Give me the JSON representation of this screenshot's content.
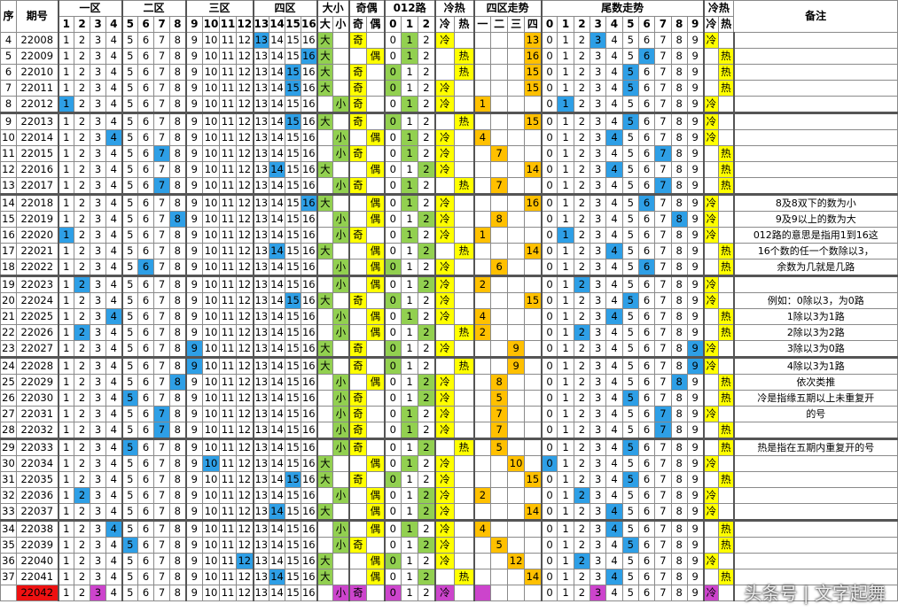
{
  "header": {
    "groups": [
      "序",
      "期号",
      "一区",
      "二区",
      "三区",
      "四区",
      "大小",
      "奇偶",
      "012路",
      "冷热",
      "四区走势",
      "尾数走势",
      "冷热",
      "备注"
    ],
    "zone_numbers": [
      1,
      2,
      3,
      4,
      5,
      6,
      7,
      8,
      9,
      10,
      11,
      12,
      13,
      14,
      15,
      16
    ],
    "size_labels": [
      "大",
      "小"
    ],
    "parity_labels": [
      "奇",
      "偶"
    ],
    "road_labels": [
      0,
      1,
      2
    ],
    "heat_labels": [
      "冷",
      "热"
    ],
    "trend_labels": [
      "一",
      "二",
      "三",
      "四"
    ],
    "tail_labels": [
      0,
      1,
      2,
      3,
      4,
      5,
      6,
      7,
      8,
      9
    ],
    "tail_heat_labels": [
      "冷",
      "热"
    ]
  },
  "rows": [
    {
      "seq": 4,
      "period": "22008",
      "pick": 13,
      "size": "大",
      "parity": "奇",
      "road": 1,
      "heat": "冷",
      "tail": 3,
      "tail_heat": "冷"
    },
    {
      "seq": 5,
      "period": "22009",
      "pick": 16,
      "size": "大",
      "parity": "偶",
      "road": 1,
      "heat": "热",
      "tail": 6,
      "tail_heat": "热"
    },
    {
      "seq": 6,
      "period": "22010",
      "pick": 15,
      "size": "大",
      "parity": "奇",
      "road": 0,
      "heat": "热",
      "tail": 5,
      "tail_heat": "热"
    },
    {
      "seq": 7,
      "period": "22011",
      "pick": 15,
      "size": "大",
      "parity": "奇",
      "road": 0,
      "heat": "冷",
      "tail": 5,
      "tail_heat": "热"
    },
    {
      "seq": 8,
      "period": "22012",
      "pick": 1,
      "size": "小",
      "parity": "奇",
      "road": 1,
      "heat": "冷",
      "tail": 1,
      "tail_heat": "冷"
    },
    {
      "seq": 9,
      "period": "22013",
      "pick": 15,
      "size": "大",
      "parity": "奇",
      "road": 0,
      "heat": "热",
      "tail": 5,
      "tail_heat": "冷"
    },
    {
      "seq": 10,
      "period": "22014",
      "pick": 4,
      "size": "小",
      "parity": "偶",
      "road": 1,
      "heat": "冷",
      "tail": 4,
      "tail_heat": "冷"
    },
    {
      "seq": 11,
      "period": "22015",
      "pick": 7,
      "size": "小",
      "parity": "奇",
      "road": 1,
      "heat": "冷",
      "tail": 7,
      "tail_heat": "热"
    },
    {
      "seq": 12,
      "period": "22016",
      "pick": 14,
      "size": "大",
      "parity": "偶",
      "road": 2,
      "heat": "冷",
      "tail": 4,
      "tail_heat": "热"
    },
    {
      "seq": 13,
      "period": "22017",
      "pick": 7,
      "size": "小",
      "parity": "奇",
      "road": 1,
      "heat": "热",
      "tail": 7,
      "tail_heat": "热"
    },
    {
      "seq": 14,
      "period": "22018",
      "pick": 16,
      "size": "大",
      "parity": "偶",
      "road": 1,
      "heat": "冷",
      "tail": 6,
      "tail_heat": "冷",
      "note": "8及8双下的数为小"
    },
    {
      "seq": 15,
      "period": "22019",
      "pick": 8,
      "size": "小",
      "parity": "偶",
      "road": 2,
      "heat": "冷",
      "tail": 8,
      "tail_heat": "冷",
      "note": "9及9以上的数为大"
    },
    {
      "seq": 16,
      "period": "22020",
      "pick": 1,
      "size": "小",
      "parity": "奇",
      "road": 1,
      "heat": "冷",
      "tail": 1,
      "tail_heat": "冷",
      "note": "012路的意思是指用1到16这"
    },
    {
      "seq": 17,
      "period": "22021",
      "pick": 14,
      "size": "大",
      "parity": "偶",
      "road": 2,
      "heat": "热",
      "tail": 4,
      "tail_heat": "热",
      "note": "16个数的任一个数除以3，"
    },
    {
      "seq": 18,
      "period": "22022",
      "pick": 6,
      "size": "小",
      "parity": "偶",
      "road": 0,
      "heat": "冷",
      "tail": 6,
      "tail_heat": "热",
      "note": "余数为几就是几路"
    },
    {
      "seq": 19,
      "period": "22023",
      "pick": 2,
      "size": "小",
      "parity": "偶",
      "road": 2,
      "heat": "冷",
      "tail": 2,
      "tail_heat": "冷"
    },
    {
      "seq": 20,
      "period": "22024",
      "pick": 15,
      "size": "大",
      "parity": "奇",
      "road": 0,
      "heat": "冷",
      "tail": 5,
      "tail_heat": "冷",
      "note": "例如：0除以3，为0路"
    },
    {
      "seq": 21,
      "period": "22025",
      "pick": 4,
      "size": "小",
      "parity": "偶",
      "road": 1,
      "heat": "冷",
      "tail": 4,
      "tail_heat": "热",
      "note": "1除以3为1路"
    },
    {
      "seq": 22,
      "period": "22026",
      "pick": 2,
      "size": "小",
      "parity": "偶",
      "road": 2,
      "heat": "热",
      "tail": 2,
      "tail_heat": "热",
      "note": "2除以3为2路"
    },
    {
      "seq": 23,
      "period": "22027",
      "pick": 9,
      "size": "大",
      "parity": "奇",
      "road": 0,
      "heat": "冷",
      "tail": 9,
      "tail_heat": "冷",
      "note": "3除以3为0路"
    },
    {
      "seq": 24,
      "period": "22028",
      "pick": 9,
      "size": "大",
      "parity": "奇",
      "road": 0,
      "heat": "热",
      "tail": 9,
      "tail_heat": "冷",
      "note": "4除以3为1路"
    },
    {
      "seq": 25,
      "period": "22029",
      "pick": 8,
      "size": "小",
      "parity": "偶",
      "road": 2,
      "heat": "冷",
      "tail": 8,
      "tail_heat": "热",
      "note": "依次类推"
    },
    {
      "seq": 26,
      "period": "22030",
      "pick": 5,
      "size": "小",
      "parity": "奇",
      "road": 2,
      "heat": "冷",
      "tail": 5,
      "tail_heat": "热",
      "note": "冷是指缘五期以上未重复开"
    },
    {
      "seq": 27,
      "period": "22031",
      "pick": 7,
      "size": "小",
      "parity": "奇",
      "road": 1,
      "heat": "冷",
      "tail": 7,
      "tail_heat": "冷",
      "note": "的号"
    },
    {
      "seq": 28,
      "period": "22032",
      "pick": 7,
      "size": "小",
      "parity": "奇",
      "road": 1,
      "heat": "冷",
      "tail": 7,
      "tail_heat": "热"
    },
    {
      "seq": 29,
      "period": "22033",
      "pick": 5,
      "size": "小",
      "parity": "奇",
      "road": 2,
      "heat": "热",
      "tail": 5,
      "tail_heat": "热",
      "note": "热是指在五期内重复开的号"
    },
    {
      "seq": 30,
      "period": "22034",
      "pick": 10,
      "size": "大",
      "parity": "偶",
      "road": 1,
      "heat": "冷",
      "tail": 0,
      "tail_heat": "冷"
    },
    {
      "seq": 31,
      "period": "22035",
      "pick": 15,
      "size": "大",
      "parity": "奇",
      "road": 0,
      "heat": "冷",
      "tail": 5,
      "tail_heat": "热"
    },
    {
      "seq": 32,
      "period": "22036",
      "pick": 2,
      "size": "小",
      "parity": "偶",
      "road": 2,
      "heat": "冷",
      "tail": 2,
      "tail_heat": "冷"
    },
    {
      "seq": 33,
      "period": "22037",
      "pick": 14,
      "size": "大",
      "parity": "偶",
      "road": 2,
      "heat": "冷",
      "tail": 4,
      "tail_heat": "冷"
    },
    {
      "seq": 34,
      "period": "22038",
      "pick": 4,
      "size": "小",
      "parity": "偶",
      "road": 1,
      "heat": "冷",
      "tail": 4,
      "tail_heat": "热"
    },
    {
      "seq": 35,
      "period": "22039",
      "pick": 5,
      "size": "小",
      "parity": "奇",
      "road": 2,
      "heat": "冷",
      "tail": 5,
      "tail_heat": "热"
    },
    {
      "seq": 36,
      "period": "22040",
      "pick": 12,
      "size": "大",
      "parity": "偶",
      "road": 0,
      "heat": "冷",
      "tail": 2,
      "tail_heat": "冷"
    },
    {
      "seq": 37,
      "period": "22041",
      "pick": 14,
      "size": "大",
      "parity": "偶",
      "road": 2,
      "heat": "热",
      "tail": 4,
      "tail_heat": "热"
    },
    {
      "period": "22042",
      "pick": 3,
      "size": "小",
      "parity": "奇",
      "road": 0,
      "heat": "冷",
      "tail": 3,
      "tail_heat": "冷",
      "color": "#cc44cc",
      "period_color": "#ee1111"
    }
  ],
  "watermark": "头条号 | 文字起舞"
}
